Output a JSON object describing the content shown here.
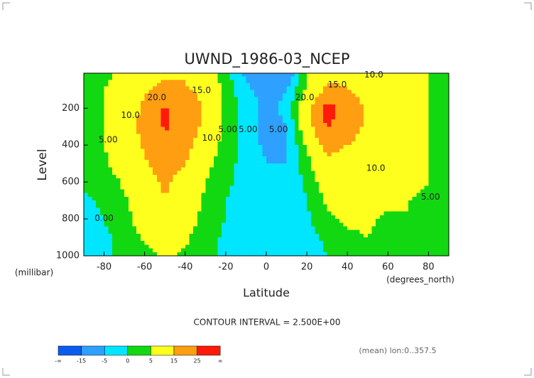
{
  "chart_data": {
    "type": "contour",
    "title": "UWND_1986-03_NCEP",
    "y_label": "Level",
    "y_unit": "(millibar)",
    "x_label": "Latitude",
    "x_unit": "(degrees_north)",
    "subtitle": "CONTOUR INTERVAL = 2.500E+00",
    "footnote": "(mean) lon:0..357.5",
    "xlim": [
      -90,
      90
    ],
    "xticks": [
      -80,
      -60,
      -40,
      -20,
      0,
      20,
      40,
      60,
      80
    ],
    "ylim": [
      1000,
      10
    ],
    "yticks": [
      200,
      400,
      600,
      800,
      1000
    ],
    "x": [
      -90,
      -80,
      -70,
      -60,
      -50,
      -40,
      -30,
      -20,
      -10,
      0,
      10,
      20,
      30,
      40,
      50,
      60,
      70,
      80,
      90
    ],
    "y": [
      10,
      100,
      200,
      300,
      400,
      500,
      600,
      700,
      800,
      900,
      1000
    ],
    "values": [
      [
        2,
        4,
        6,
        10,
        14,
        14,
        8,
        2,
        -6,
        -12,
        -10,
        4,
        12,
        14,
        12,
        10,
        8,
        5,
        2
      ],
      [
        2,
        5,
        8,
        14,
        17,
        16,
        12,
        3,
        -4,
        -7,
        -5,
        6,
        17,
        15,
        10,
        8,
        7,
        5,
        2
      ],
      [
        3,
        5,
        9,
        17,
        26,
        22,
        14,
        4,
        -3,
        -6,
        -4,
        12,
        28,
        22,
        13,
        9,
        7,
        5,
        2
      ],
      [
        3,
        5,
        10,
        18,
        26,
        22,
        12,
        4,
        -3,
        -7,
        -5,
        10,
        26,
        20,
        13,
        9,
        7,
        5,
        2
      ],
      [
        3,
        5,
        9,
        16,
        22,
        18,
        9,
        3,
        -3,
        -6,
        -6,
        6,
        18,
        15,
        11,
        8,
        7,
        5,
        2
      ],
      [
        2,
        4,
        8,
        14,
        18,
        15,
        7,
        2,
        -2,
        -5,
        -5,
        3,
        13,
        12,
        10,
        8,
        6,
        5,
        2
      ],
      [
        1,
        2,
        6,
        12,
        16,
        12,
        5,
        1,
        -2,
        -4,
        -4,
        1,
        9,
        10,
        9,
        8,
        6,
        5,
        2
      ],
      [
        -1,
        1,
        4,
        10,
        15,
        10,
        4,
        0,
        -2,
        -4,
        -4,
        0,
        6,
        8,
        8,
        6,
        5,
        4,
        2
      ],
      [
        -2,
        0,
        3,
        8,
        13,
        8,
        3,
        0,
        -2,
        -3,
        -3,
        -1,
        4,
        6,
        6,
        4,
        5,
        4,
        2
      ],
      [
        -2,
        -1,
        2,
        6,
        10,
        6,
        2,
        -1,
        -3,
        -3,
        -4,
        -2,
        1,
        4,
        5,
        3,
        3,
        3,
        2
      ],
      [
        -1,
        -1,
        1,
        3,
        6,
        4,
        1,
        -1,
        -3,
        -2,
        -3,
        -2,
        0,
        2,
        3,
        2,
        1,
        2,
        2
      ]
    ],
    "colorbar": {
      "levels": [
        "-∞",
        -15,
        -5,
        0,
        5,
        15,
        25,
        "∞"
      ],
      "colors": [
        "#0a5cf0",
        "#2ea0ff",
        "#00e6ff",
        "#12d812",
        "#ffff1e",
        "#ff9e10",
        "#ff1a0a"
      ]
    },
    "contour_labels": [
      {
        "label": "20.0",
        "x": -54,
        "y": 143
      },
      {
        "label": "15.0",
        "x": -32,
        "y": 104
      },
      {
        "label": "10.0",
        "x": -67,
        "y": 239
      },
      {
        "label": "5.00",
        "x": -78,
        "y": 373
      },
      {
        "label": "10.0",
        "x": -27,
        "y": 363
      },
      {
        "label": "5.00",
        "x": -19,
        "y": 316
      },
      {
        "label": "5.00",
        "x": -9,
        "y": 316
      },
      {
        "label": "5.00",
        "x": 6,
        "y": 316
      },
      {
        "label": "0.00",
        "x": -80,
        "y": 797
      },
      {
        "label": "20.0",
        "x": 19,
        "y": 143
      },
      {
        "label": "15.0",
        "x": 35,
        "y": 73
      },
      {
        "label": "10.0",
        "x": 53,
        "y": 19
      },
      {
        "label": "10.0",
        "x": 54,
        "y": 527
      },
      {
        "label": "5.00",
        "x": 81,
        "y": 682
      }
    ]
  }
}
